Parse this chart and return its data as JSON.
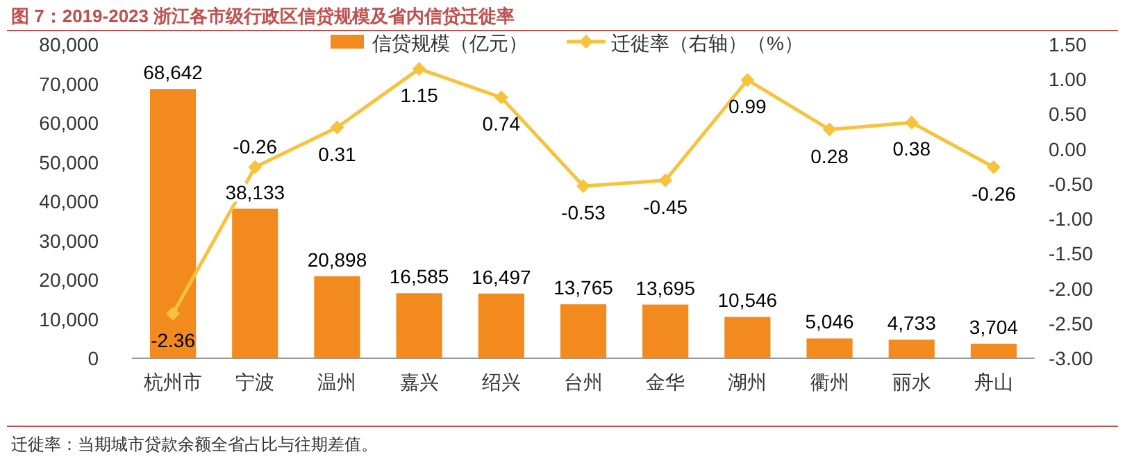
{
  "chart_data": {
    "type": "bar",
    "title": "图 7：2019-2023 浙江各市级行政区信贷规模及省内信贷迁徙率",
    "categories": [
      "杭州市",
      "宁波",
      "温州",
      "嘉兴",
      "绍兴",
      "台州",
      "金华",
      "湖州",
      "衢州",
      "丽水",
      "舟山"
    ],
    "series": [
      {
        "name": "信贷规模（亿元）",
        "type": "bar",
        "color": "#f28a1e",
        "values": [
          68642,
          38133,
          20898,
          16585,
          16497,
          13765,
          13695,
          10546,
          5046,
          4733,
          3704
        ],
        "value_labels": [
          "68,642",
          "38,133",
          "20,898",
          "16,585",
          "16,497",
          "13,765",
          "13,695",
          "10,546",
          "5,046",
          "4,733",
          "3,704"
        ]
      },
      {
        "name": "迁徙率（右轴）（%）",
        "type": "line",
        "axis": "y2",
        "color": "#f7c23c",
        "marker": "diamond",
        "values": [
          -2.36,
          -0.26,
          0.31,
          1.15,
          0.74,
          -0.53,
          -0.45,
          0.99,
          0.28,
          0.38,
          -0.26
        ],
        "value_labels": [
          "-2.36",
          "-0.26",
          "0.31",
          "1.15",
          "0.74",
          "-0.53",
          "-0.45",
          "0.99",
          "0.28",
          "0.38",
          "-0.26"
        ]
      }
    ],
    "ylim": [
      0,
      80000
    ],
    "yticks": [
      0,
      {
        "value": 10000,
        "label": "10,000"
      },
      {
        "value": 20000,
        "label": "20,000"
      },
      {
        "value": 30000,
        "label": "30,000"
      },
      {
        "value": 40000,
        "label": "40,000"
      },
      {
        "value": 50000,
        "label": "50,000"
      },
      {
        "value": 60000,
        "label": "60,000"
      },
      {
        "value": 70000,
        "label": "70,000"
      },
      {
        "value": 80000,
        "label": "80,000"
      }
    ],
    "y2lim": [
      -3,
      1.5
    ],
    "y2ticks": [
      {
        "value": -3,
        "label": "-3.00"
      },
      {
        "value": -2.5,
        "label": "-2.50"
      },
      {
        "value": -2,
        "label": "-2.00"
      },
      {
        "value": -1.5,
        "label": "-1.50"
      },
      {
        "value": -1,
        "label": "-1.00"
      },
      {
        "value": -0.5,
        "label": "-0.50"
      },
      {
        "value": 0,
        "label": "0.00"
      },
      {
        "value": 0.5,
        "label": "0.50"
      },
      {
        "value": 1,
        "label": "1.00"
      },
      {
        "value": 1.5,
        "label": "1.50"
      }
    ],
    "legend": "top",
    "grid": false,
    "annotations": [
      "迁徙率：当期城市贷款余额全省占比与往期差值。"
    ]
  }
}
